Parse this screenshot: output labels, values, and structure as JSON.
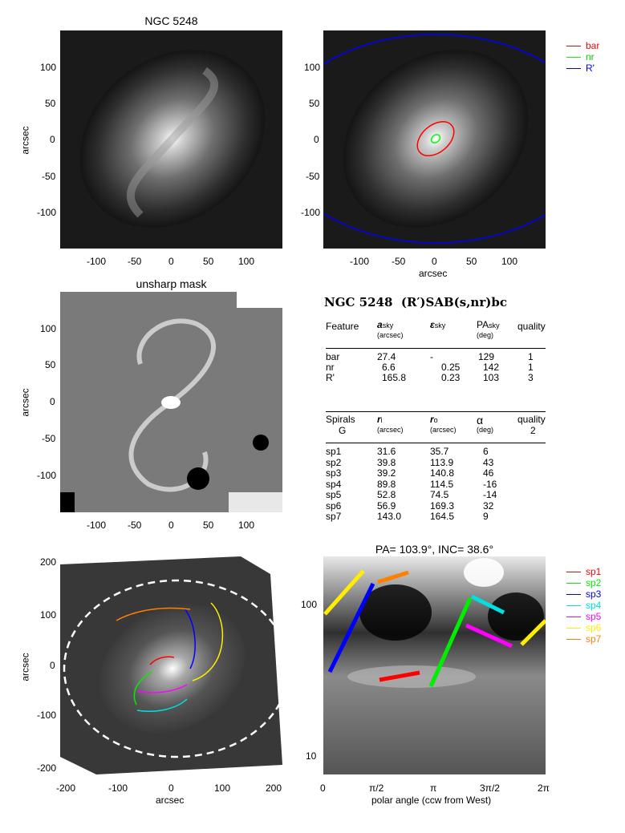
{
  "panels": {
    "p1": {
      "title": "NGC 5248",
      "ylabel": "arcsec"
    },
    "p2": {
      "xlabel": "arcsec"
    },
    "p3": {
      "title": "unsharp mask",
      "ylabel": "arcsec"
    },
    "p5": {
      "xlabel": "arcsec",
      "ylabel": "arcsec"
    },
    "p6": {
      "title": "PA= 103.9°, INC=  38.6°",
      "xlabel": "polar angle (ccw from West)"
    }
  },
  "ticks": {
    "img_x": [
      "-100",
      "-50",
      "0",
      "50",
      "100"
    ],
    "img_y": [
      "100",
      "50",
      "0",
      "-50",
      "-100"
    ],
    "big_x": [
      "-200",
      "-100",
      "0",
      "100",
      "200"
    ],
    "big_y": [
      "200",
      "100",
      "0",
      "-100",
      "-200"
    ],
    "polar_x": [
      "0",
      "π/2",
      "π",
      "3π/2",
      "2π"
    ],
    "polar_y": [
      "100",
      "10"
    ]
  },
  "legend_top": [
    {
      "label": "bar",
      "color": "#ff0000"
    },
    {
      "label": "nr",
      "color": "#00ff00"
    },
    {
      "label": "R'",
      "color": "#0000ff"
    }
  ],
  "legend_spirals": [
    {
      "label": "sp1",
      "color": "#ff0000"
    },
    {
      "label": "sp2",
      "color": "#00ee00"
    },
    {
      "label": "sp3",
      "color": "#0000ff"
    },
    {
      "label": "sp4",
      "color": "#00e0e0"
    },
    {
      "label": "sp5",
      "color": "#ff00ff"
    },
    {
      "label": "sp6",
      "color": "#ffee00"
    },
    {
      "label": "sp7",
      "color": "#ff8000"
    }
  ],
  "classification": {
    "galaxy": "NGC 5248",
    "type": "(R′)SAB(s,nr)bc"
  },
  "features_table": {
    "headers": [
      "Feature",
      "a",
      "ε",
      "PA",
      "quality"
    ],
    "header_subs": [
      "",
      "sky",
      "sky",
      "sky",
      ""
    ],
    "header_units": [
      "",
      "(arcsec)",
      "",
      "(deg)",
      ""
    ],
    "rows": [
      [
        "bar",
        "27.4",
        "-",
        "129",
        "1"
      ],
      [
        "nr",
        "6.6",
        "0.25",
        "142",
        "1"
      ],
      [
        "R'",
        "165.8",
        "0.23",
        "103",
        "3"
      ]
    ]
  },
  "spirals_table": {
    "headers": [
      "Spirals",
      "r",
      "r",
      "α",
      "quality"
    ],
    "header_subs": [
      "",
      "i",
      "o",
      "",
      ""
    ],
    "header_units": [
      "G",
      "(arcsec)",
      "(arcsec)",
      "(deg)",
      "2"
    ],
    "rows": [
      [
        "sp1",
        "31.6",
        "35.7",
        "6"
      ],
      [
        "sp2",
        "39.8",
        "113.9",
        "43"
      ],
      [
        "sp3",
        "39.2",
        "140.8",
        "46"
      ],
      [
        "sp4",
        "89.8",
        "114.5",
        "-16"
      ],
      [
        "sp5",
        "52.8",
        "74.5",
        "-14"
      ],
      [
        "sp6",
        "56.9",
        "169.3",
        "32"
      ],
      [
        "sp7",
        "143.0",
        "164.5",
        "9"
      ]
    ]
  },
  "colors": {
    "bar": "#ff0000",
    "nr": "#00ff00",
    "R": "#0000ff"
  }
}
